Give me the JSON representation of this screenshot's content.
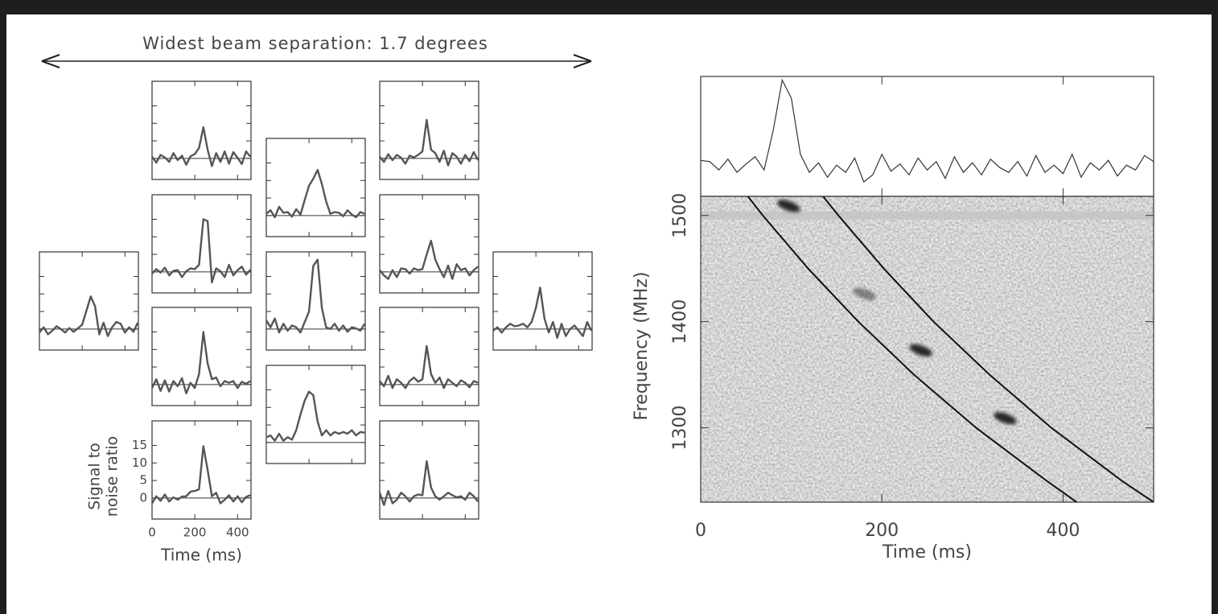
{
  "chart_data": [
    {
      "type": "beam-grid",
      "title": "Widest beam separation: 1.7 degrees",
      "xlabel": "Time (ms)",
      "ylabel": [
        "Signal to",
        "noise ratio"
      ],
      "x": [
        0,
        20,
        40,
        60,
        80,
        100,
        120,
        140,
        160,
        180,
        200,
        220,
        240,
        260,
        280,
        300,
        320,
        340,
        360,
        380,
        400,
        420,
        440,
        460
      ],
      "xlim": [
        0,
        463
      ],
      "xticks": [
        0,
        200,
        400
      ],
      "ylim": [
        -6,
        22
      ],
      "yticks": [
        0,
        5,
        10,
        15
      ],
      "panels": [
        {
          "values": [
            -1,
            0.5,
            -1.5,
            -0.5,
            0.8,
            0,
            -1,
            0.3,
            -0.8,
            0.2,
            1.2,
            5.2,
            9.3,
            6.5,
            -1.5,
            1.8,
            -2,
            0.5,
            2,
            1.5,
            -1,
            0.5,
            -0.8,
            1.8
          ]
        },
        {
          "values": [
            0.5,
            -1.2,
            1,
            0.3,
            -1,
            1.5,
            -0.5,
            0.8,
            -1.8,
            0.6,
            1.2,
            3,
            8.9,
            2.5,
            -2.2,
            1.5,
            -1,
            2,
            -1.5,
            1.8,
            0.2,
            -1.6,
            2,
            0.5
          ]
        },
        {
          "values": [
            -0.5,
            0.8,
            -0.2,
            1.2,
            -1,
            0.3,
            0.5,
            -1.5,
            0.2,
            1,
            0.8,
            2,
            15,
            14.5,
            -3,
            1,
            0.2,
            -1.5,
            2,
            -1,
            0.5,
            1.5,
            -0.8,
            0.6
          ]
        },
        {
          "values": [
            -1,
            1.5,
            -1.8,
            1.2,
            -2,
            1,
            -0.5,
            1.8,
            -2.5,
            0.5,
            -1,
            3,
            15,
            6,
            1.5,
            2,
            -0.5,
            1,
            0.5,
            1,
            -1,
            0.8,
            0.2,
            1
          ]
        },
        {
          "values": [
            -1.5,
            0.5,
            -0.8,
            1,
            -1,
            0.2,
            -0.5,
            0.4,
            0.5,
            1.8,
            2,
            2.5,
            14.8,
            8,
            0.5,
            1.5,
            -1.5,
            -0.5,
            0.8,
            -1,
            0.5,
            -1.2,
            0.3,
            0.8
          ]
        },
        {
          "values": [
            0.5,
            1.5,
            -0.5,
            2.5,
            0.8,
            1,
            -0.3,
            1.8,
            0.3,
            4.5,
            8.5,
            10.5,
            13,
            9,
            4,
            0.5,
            1,
            0.8,
            -0.2,
            1.5,
            0.3,
            -0.5,
            1,
            0.5
          ]
        },
        {
          "values": [
            2.5,
            0.5,
            3,
            -1,
            1.5,
            -0.5,
            1,
            0.5,
            -1,
            2,
            5,
            18,
            19.8,
            6,
            0.5,
            0,
            1.5,
            -0.5,
            1,
            -0.8,
            0.5,
            0.2,
            -0.5,
            1.5
          ]
        },
        {
          "values": [
            1.5,
            2,
            0.5,
            2.5,
            0.5,
            1.5,
            0.8,
            3.5,
            8,
            12,
            14.5,
            13.5,
            6,
            2,
            3.5,
            2,
            3,
            2.5,
            3,
            2.5,
            3.5,
            2,
            3,
            2.8
          ]
        },
        {
          "values": [
            0.5,
            -1,
            1.2,
            -0.5,
            1,
            0.2,
            -1.5,
            0.8,
            0.3,
            1,
            2,
            11,
            2.5,
            1.5,
            -1,
            2.2,
            -2,
            1.5,
            0.5,
            -1.5,
            1,
            -0.8,
            1.8,
            -0.5
          ]
        },
        {
          "values": [
            0.5,
            -1,
            -2,
            0.5,
            -1.5,
            1,
            0.8,
            -0.5,
            1,
            0.5,
            0.8,
            5,
            8.9,
            3.5,
            0.8,
            -1.5,
            1.8,
            -2,
            2.2,
            0.5,
            1,
            -1,
            0.5,
            1.5
          ]
        },
        {
          "values": [
            1,
            -0.5,
            2.5,
            -1,
            1.5,
            0.5,
            -1,
            1,
            2,
            0.8,
            1.5,
            11,
            3,
            0.5,
            2,
            -1,
            1.5,
            0.5,
            -0.5,
            1.2,
            0.5,
            -0.8,
            1,
            0.5
          ]
        },
        {
          "values": [
            1.5,
            -2,
            2,
            -1.5,
            -0.5,
            1.5,
            0.5,
            -1,
            0.5,
            1,
            0.8,
            10.5,
            3,
            0.5,
            -0.5,
            0.5,
            1.5,
            0.8,
            0.2,
            0.5,
            -0.5,
            1.5,
            0.5,
            -1
          ]
        },
        {
          "values": [
            -0.5,
            0.5,
            -1,
            0.5,
            1.5,
            0.8,
            1,
            1.5,
            0.5,
            2,
            6,
            11.8,
            3,
            -1,
            2,
            -2.5,
            1.5,
            -2,
            0,
            1,
            -0.5,
            -2,
            2,
            -0.5
          ]
        }
      ]
    },
    {
      "type": "dynamic-spectrum",
      "xlabel": "Time (ms)",
      "ylabel": "Frequency (MHz)",
      "xlim": [
        0,
        500
      ],
      "xticks": [
        0,
        200,
        400
      ],
      "ylim": [
        1230,
        1518
      ],
      "yticks": [
        1300,
        1400,
        1500
      ],
      "profile": {
        "x": [
          0,
          10,
          20,
          30,
          40,
          50,
          60,
          70,
          80,
          90,
          100,
          110,
          120,
          130,
          140,
          150,
          160,
          170,
          180,
          190,
          200,
          210,
          220,
          230,
          240,
          250,
          260,
          270,
          280,
          290,
          300,
          310,
          320,
          330,
          340,
          350,
          360,
          370,
          380,
          390,
          400,
          410,
          420,
          430,
          440,
          450,
          460,
          470,
          480,
          490,
          500
        ],
        "values": [
          3.0,
          2.9,
          2.2,
          3.1,
          2.0,
          2.7,
          3.3,
          2.2,
          5.5,
          9.7,
          8.2,
          3.5,
          2.0,
          2.8,
          1.6,
          2.6,
          2.0,
          3.2,
          1.2,
          1.8,
          3.5,
          2.1,
          2.7,
          1.8,
          3.2,
          2.2,
          2.9,
          1.5,
          3.3,
          2.0,
          2.8,
          1.8,
          3.1,
          2.4,
          2.0,
          2.9,
          1.7,
          3.4,
          2.0,
          2.6,
          1.9,
          3.5,
          1.6,
          2.8,
          2.2,
          3.0,
          1.7,
          2.6,
          2.2,
          3.4,
          2.9
        ],
        "ylim": [
          0,
          10
        ]
      },
      "curves": [
        {
          "x": [
            52,
            68.6,
            118.6,
            174,
            235.5,
            304,
            382,
            415
          ],
          "y": [
            1518,
            1500,
            1450,
            1400,
            1350,
            1300,
            1250,
            1230
          ]
        },
        {
          "x": [
            135,
            152,
            202,
            257,
            319,
            387,
            465,
            500
          ],
          "y": [
            1518,
            1500,
            1450,
            1400,
            1350,
            1300,
            1250,
            1230
          ]
        }
      ],
      "pulses": {
        "x": [
          97,
          181,
          243,
          336
        ],
        "y": [
          1509,
          1426,
          1373,
          1309
        ]
      }
    }
  ]
}
